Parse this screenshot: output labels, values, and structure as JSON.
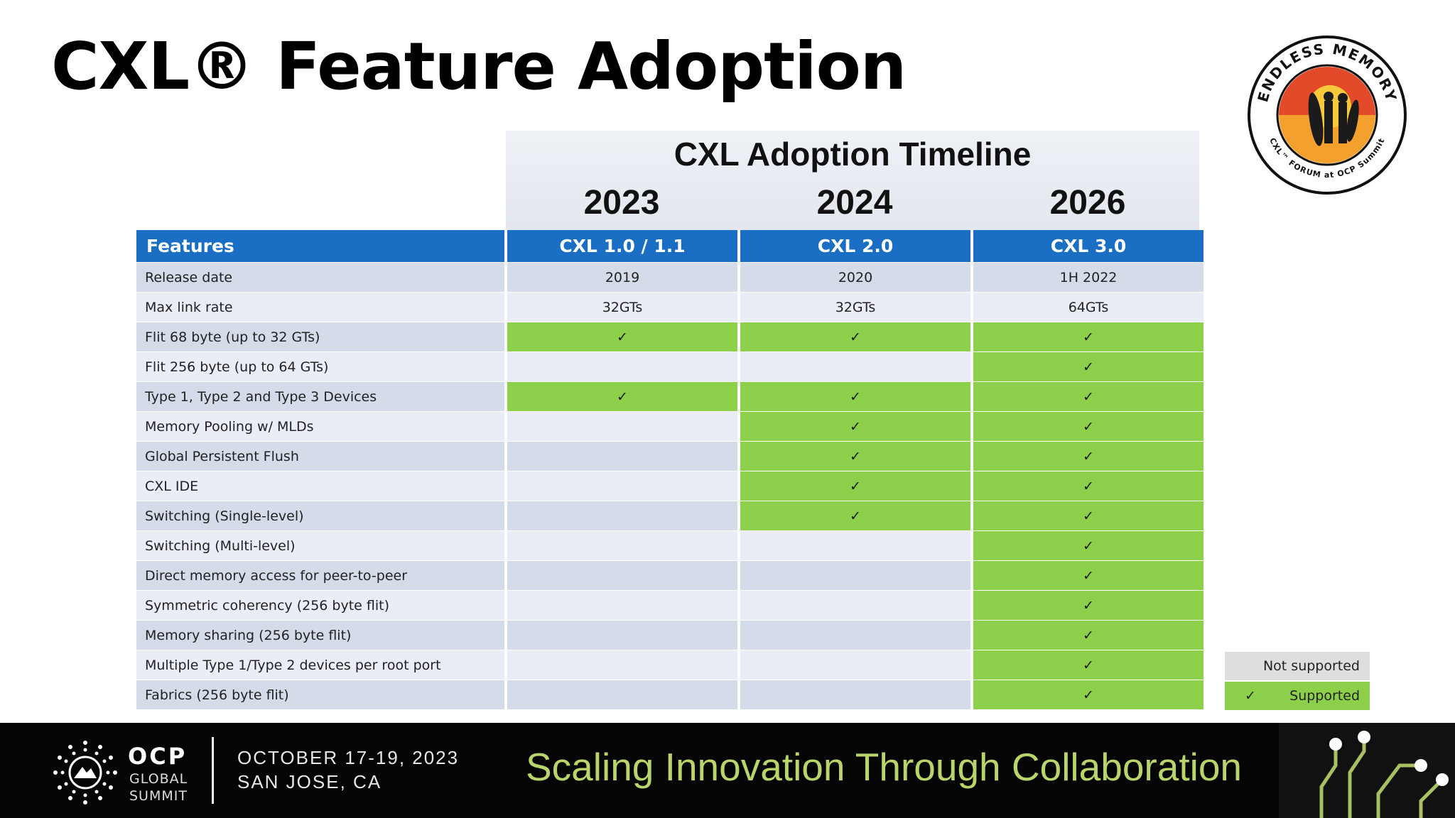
{
  "slide": {
    "title": "CXL® Feature Adoption"
  },
  "logo": {
    "top_text": "ENDLESS MEMORY",
    "bottom_text": "CXL™ FORUM at OCP Summit"
  },
  "timeline": {
    "title": "CXL Adoption Timeline",
    "years": [
      "2023",
      "2024",
      "2026"
    ]
  },
  "table": {
    "headers": [
      "Features",
      "CXL 1.0 / 1.1",
      "CXL 2.0",
      "CXL 3.0"
    ],
    "rows": [
      {
        "feature": "Release date",
        "cells": [
          "2019",
          "2020",
          "1H 2022"
        ],
        "green": [
          false,
          false,
          false
        ]
      },
      {
        "feature": "Max link rate",
        "cells": [
          "32GTs",
          "32GTs",
          "64GTs"
        ],
        "green": [
          false,
          false,
          false
        ]
      },
      {
        "feature": "Flit 68 byte (up to 32 GTs)",
        "cells": [
          "✓",
          "✓",
          "✓"
        ],
        "green": [
          true,
          true,
          true
        ]
      },
      {
        "feature": "Flit 256 byte (up to 64 GTs)",
        "cells": [
          "",
          "",
          "✓"
        ],
        "green": [
          false,
          false,
          true
        ]
      },
      {
        "feature": "Type 1, Type 2 and Type 3 Devices",
        "cells": [
          "✓",
          "✓",
          "✓"
        ],
        "green": [
          true,
          true,
          true
        ]
      },
      {
        "feature": "Memory Pooling w/ MLDs",
        "cells": [
          "",
          "✓",
          "✓"
        ],
        "green": [
          false,
          true,
          true
        ]
      },
      {
        "feature": "Global Persistent Flush",
        "cells": [
          "",
          "✓",
          "✓"
        ],
        "green": [
          false,
          true,
          true
        ]
      },
      {
        "feature": "CXL IDE",
        "cells": [
          "",
          "✓",
          "✓"
        ],
        "green": [
          false,
          true,
          true
        ]
      },
      {
        "feature": "Switching (Single-level)",
        "cells": [
          "",
          "✓",
          "✓"
        ],
        "green": [
          false,
          true,
          true
        ]
      },
      {
        "feature": "Switching (Multi-level)",
        "cells": [
          "",
          "",
          "✓"
        ],
        "green": [
          false,
          false,
          true
        ]
      },
      {
        "feature": "Direct memory access for peer-to-peer",
        "cells": [
          "",
          "",
          "✓"
        ],
        "green": [
          false,
          false,
          true
        ]
      },
      {
        "feature": "Symmetric coherency (256 byte flit)",
        "cells": [
          "",
          "",
          "✓"
        ],
        "green": [
          false,
          false,
          true
        ]
      },
      {
        "feature": "Memory sharing (256 byte flit)",
        "cells": [
          "",
          "",
          "✓"
        ],
        "green": [
          false,
          false,
          true
        ]
      },
      {
        "feature": "Multiple Type 1/Type 2 devices per root port",
        "cells": [
          "",
          "",
          "✓"
        ],
        "green": [
          false,
          false,
          true
        ]
      },
      {
        "feature": "Fabrics (256 byte flit)",
        "cells": [
          "",
          "",
          "✓"
        ],
        "green": [
          false,
          false,
          true
        ]
      }
    ]
  },
  "legend": {
    "not_supported": "Not supported",
    "supported_mark": "✓",
    "supported": "Supported"
  },
  "footer": {
    "org": "OCP",
    "org_sub1": "GLOBAL",
    "org_sub2": "SUMMIT",
    "date": "OCTOBER 17-19, 2023",
    "location": "SAN JOSE, CA",
    "tagline": "Scaling Innovation Through Collaboration"
  },
  "colors": {
    "header_blue": "#1a6fc4",
    "supported_green": "#8ccf4b",
    "row_shade": "#d4dbe9",
    "row_light": "#eaedf5",
    "tagline_green": "#b9d46a"
  }
}
